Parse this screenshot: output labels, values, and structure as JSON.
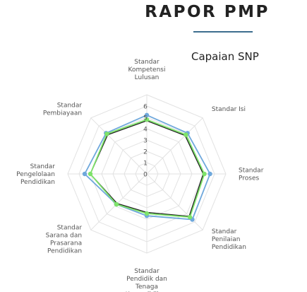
{
  "header": {
    "title": "RAPOR PMP"
  },
  "chart_data": {
    "type": "radar",
    "title": "Capaian SNP",
    "axes": [
      [
        "Standar",
        "Kompetensi",
        "Lulusan"
      ],
      [
        "Standar Isi"
      ],
      [
        "Standar",
        "Proses"
      ],
      [
        "Standar",
        "Penilaian",
        "Pendidikan"
      ],
      [
        "Standar",
        "Pendidik dan",
        "Tenaga",
        "Kependidikan"
      ],
      [
        "Standar",
        "Sarana dan",
        "Prasarana",
        "Pendidikan"
      ],
      [
        "Standar",
        "Pengelolaan",
        "Pendidikan"
      ],
      [
        "Standar",
        "Pembiayaan"
      ]
    ],
    "ticks": [
      "0",
      "1",
      "2",
      "3",
      "4",
      "5",
      "6"
    ],
    "rmin": 0,
    "rmax": 7,
    "series": [
      {
        "color": "#6fa8dc",
        "values": [
          5.2,
          5.1,
          5.6,
          5.7,
          3.7,
          3.8,
          5.5,
          5.1
        ]
      },
      {
        "color": "#1a1a1a",
        "values": [
          4.7,
          4.8,
          5.0,
          5.3,
          3.4,
          3.7,
          5.0,
          4.9
        ]
      },
      {
        "color": "#7ee36a",
        "values": [
          4.8,
          4.9,
          5.1,
          5.4,
          3.5,
          3.8,
          5.0,
          5.0
        ]
      }
    ]
  }
}
